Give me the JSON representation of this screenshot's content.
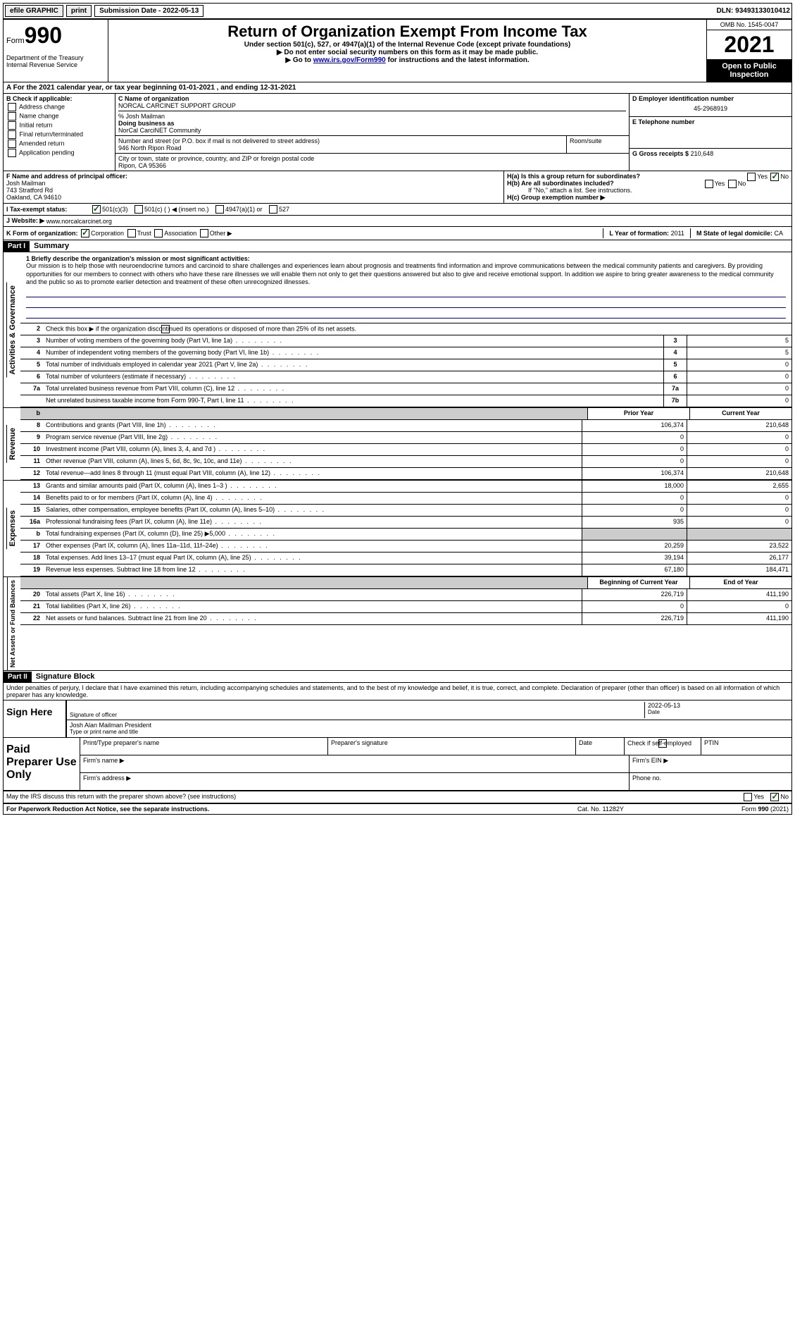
{
  "top_bar": {
    "efile": "efile GRAPHIC",
    "print": "print",
    "sub_date_label": "Submission Date - 2022-05-13",
    "dln": "DLN: 93493133010412"
  },
  "header": {
    "form_label": "Form",
    "form_num": "990",
    "dept": "Department of the Treasury Internal Revenue Service",
    "title": "Return of Organization Exempt From Income Tax",
    "subtitle": "Under section 501(c), 527, or 4947(a)(1) of the Internal Revenue Code (except private foundations)",
    "arrow1": "▶ Do not enter social security numbers on this form as it may be made public.",
    "arrow2_pre": "▶ Go to ",
    "arrow2_link": "www.irs.gov/Form990",
    "arrow2_post": " for instructions and the latest information.",
    "omb": "OMB No. 1545-0047",
    "year": "2021",
    "open": "Open to Public Inspection"
  },
  "line_a": "A For the 2021 calendar year, or tax year beginning 01-01-2021    , and ending 12-31-2021",
  "section_b": {
    "label": "B Check if applicable:",
    "items": [
      "Address change",
      "Name change",
      "Initial return",
      "Final return/terminated",
      "Amended return",
      "Application pending"
    ]
  },
  "section_c": {
    "name_label": "C Name of organization",
    "name": "NORCAL CARCINET SUPPORT GROUP",
    "care_of": "% Josh Mailman",
    "dba_label": "Doing business as",
    "dba": "NorCal CarciNET Community",
    "street_label": "Number and street (or P.O. box if mail is not delivered to street address)",
    "street": "946 North Ripon Road",
    "room_label": "Room/suite",
    "city_label": "City or town, state or province, country, and ZIP or foreign postal code",
    "city": "Ripon, CA  95366"
  },
  "section_d": {
    "label": "D Employer identification number",
    "ein": "45-2968919",
    "e_label": "E Telephone number",
    "g_label": "G Gross receipts $",
    "g_val": "210,648"
  },
  "section_f": {
    "label": "F  Name and address of principal officer:",
    "name": "Josh Mailman",
    "addr1": "743 Stratford Rd",
    "addr2": "Oakland, CA  94610"
  },
  "section_h": {
    "ha": "H(a)  Is this a group return for subordinates?",
    "hb": "H(b)  Are all subordinates included?",
    "hb_note": "If \"No,\" attach a list. See instructions.",
    "hc": "H(c)  Group exemption number ▶",
    "yes": "Yes",
    "no": "No"
  },
  "tax_status": {
    "label": "I   Tax-exempt status:",
    "opts": [
      "501(c)(3)",
      "501(c) (  ) ◀ (insert no.)",
      "4947(a)(1) or",
      "527"
    ]
  },
  "website": {
    "label": "J  Website: ▶",
    "url": "www.norcalcarcinet.org"
  },
  "line_k": {
    "label": "K Form of organization:",
    "opts": [
      "Corporation",
      "Trust",
      "Association",
      "Other ▶"
    ],
    "l_label": "L Year of formation:",
    "l_val": "2011",
    "m_label": "M State of legal domicile:",
    "m_val": "CA"
  },
  "part1": {
    "header": "Part I",
    "title": "Summary",
    "mission_label": "1   Briefly describe the organization's mission or most significant activities:",
    "mission": "Our mission is to help those with neuroendocrine tumors and carcinoid to share challenges and experiences learn about prognosis and treatments find information and improve communications between the medical community patients and caregivers. By providing opportunities for our members to connect with others who have these rare illnesses we will enable them not only to get their questions answered but also to give and receive emotional support. In addition we aspire to bring greater awareness to the medical community and the public so as to promote earlier detection and treatment of these often unrecognized illnesses.",
    "line2": "Check this box ▶         if the organization discontinued its operations or disposed of more than 25% of its net assets.",
    "vert_gov": "Activities & Governance",
    "vert_rev": "Revenue",
    "vert_exp": "Expenses",
    "vert_net": "Net Assets or Fund Balances",
    "lines_gov": [
      {
        "n": "3",
        "t": "Number of voting members of the governing body (Part VI, line 1a)",
        "box": "3",
        "v": "5"
      },
      {
        "n": "4",
        "t": "Number of independent voting members of the governing body (Part VI, line 1b)",
        "box": "4",
        "v": "5"
      },
      {
        "n": "5",
        "t": "Total number of individuals employed in calendar year 2021 (Part V, line 2a)",
        "box": "5",
        "v": "0"
      },
      {
        "n": "6",
        "t": "Total number of volunteers (estimate if necessary)",
        "box": "6",
        "v": "0"
      },
      {
        "n": "7a",
        "t": "Total unrelated business revenue from Part VIII, column (C), line 12",
        "box": "7a",
        "v": "0"
      },
      {
        "n": "",
        "t": "Net unrelated business taxable income from Form 990-T, Part I, line 11",
        "box": "7b",
        "v": "0"
      }
    ],
    "col_prior": "Prior Year",
    "col_current": "Current Year",
    "lines_rev": [
      {
        "n": "8",
        "t": "Contributions and grants (Part VIII, line 1h)",
        "p": "106,374",
        "c": "210,648"
      },
      {
        "n": "9",
        "t": "Program service revenue (Part VIII, line 2g)",
        "p": "0",
        "c": "0"
      },
      {
        "n": "10",
        "t": "Investment income (Part VIII, column (A), lines 3, 4, and 7d )",
        "p": "0",
        "c": "0"
      },
      {
        "n": "11",
        "t": "Other revenue (Part VIII, column (A), lines 5, 6d, 8c, 9c, 10c, and 11e)",
        "p": "0",
        "c": "0"
      },
      {
        "n": "12",
        "t": "Total revenue—add lines 8 through 11 (must equal Part VIII, column (A), line 12)",
        "p": "106,374",
        "c": "210,648"
      }
    ],
    "lines_exp": [
      {
        "n": "13",
        "t": "Grants and similar amounts paid (Part IX, column (A), lines 1–3 )",
        "p": "18,000",
        "c": "2,655"
      },
      {
        "n": "14",
        "t": "Benefits paid to or for members (Part IX, column (A), line 4)",
        "p": "0",
        "c": "0"
      },
      {
        "n": "15",
        "t": "Salaries, other compensation, employee benefits (Part IX, column (A), lines 5–10)",
        "p": "0",
        "c": "0"
      },
      {
        "n": "16a",
        "t": "Professional fundraising fees (Part IX, column (A), line 11e)",
        "p": "935",
        "c": "0"
      },
      {
        "n": "b",
        "t": "Total fundraising expenses (Part IX, column (D), line 25) ▶5,000",
        "p": "",
        "c": "",
        "shaded": true
      },
      {
        "n": "17",
        "t": "Other expenses (Part IX, column (A), lines 11a–11d, 11f–24e)",
        "p": "20,259",
        "c": "23,522"
      },
      {
        "n": "18",
        "t": "Total expenses. Add lines 13–17 (must equal Part IX, column (A), line 25)",
        "p": "39,194",
        "c": "26,177"
      },
      {
        "n": "19",
        "t": "Revenue less expenses. Subtract line 18 from line 12",
        "p": "67,180",
        "c": "184,471"
      }
    ],
    "col_begin": "Beginning of Current Year",
    "col_end": "End of Year",
    "lines_net": [
      {
        "n": "20",
        "t": "Total assets (Part X, line 16)",
        "p": "226,719",
        "c": "411,190"
      },
      {
        "n": "21",
        "t": "Total liabilities (Part X, line 26)",
        "p": "0",
        "c": "0"
      },
      {
        "n": "22",
        "t": "Net assets or fund balances. Subtract line 21 from line 20",
        "p": "226,719",
        "c": "411,190"
      }
    ]
  },
  "part2": {
    "header": "Part II",
    "title": "Signature Block",
    "decl": "Under penalties of perjury, I declare that I have examined this return, including accompanying schedules and statements, and to the best of my knowledge and belief, it is true, correct, and complete. Declaration of preparer (other than officer) is based on all information of which preparer has any knowledge.",
    "sign_here": "Sign Here",
    "sig_officer": "Signature of officer",
    "sig_date": "2022-05-13",
    "date_label": "Date",
    "officer_name": "Josh Alan Mailman  President",
    "name_label": "Type or print name and title",
    "paid": "Paid Preparer Use Only",
    "prep_name": "Print/Type preparer's name",
    "prep_sig": "Preparer's signature",
    "prep_date": "Date",
    "check_if": "Check        if self-employed",
    "ptin": "PTIN",
    "firm_name": "Firm's name    ▶",
    "firm_ein": "Firm's EIN ▶",
    "firm_addr": "Firm's address ▶",
    "phone": "Phone no."
  },
  "footer": {
    "discuss": "May the IRS discuss this return with the preparer shown above? (see instructions)",
    "paperwork": "For Paperwork Reduction Act Notice, see the separate instructions.",
    "cat": "Cat. No. 11282Y",
    "form": "Form 990 (2021)",
    "yes": "Yes",
    "no": "No"
  }
}
